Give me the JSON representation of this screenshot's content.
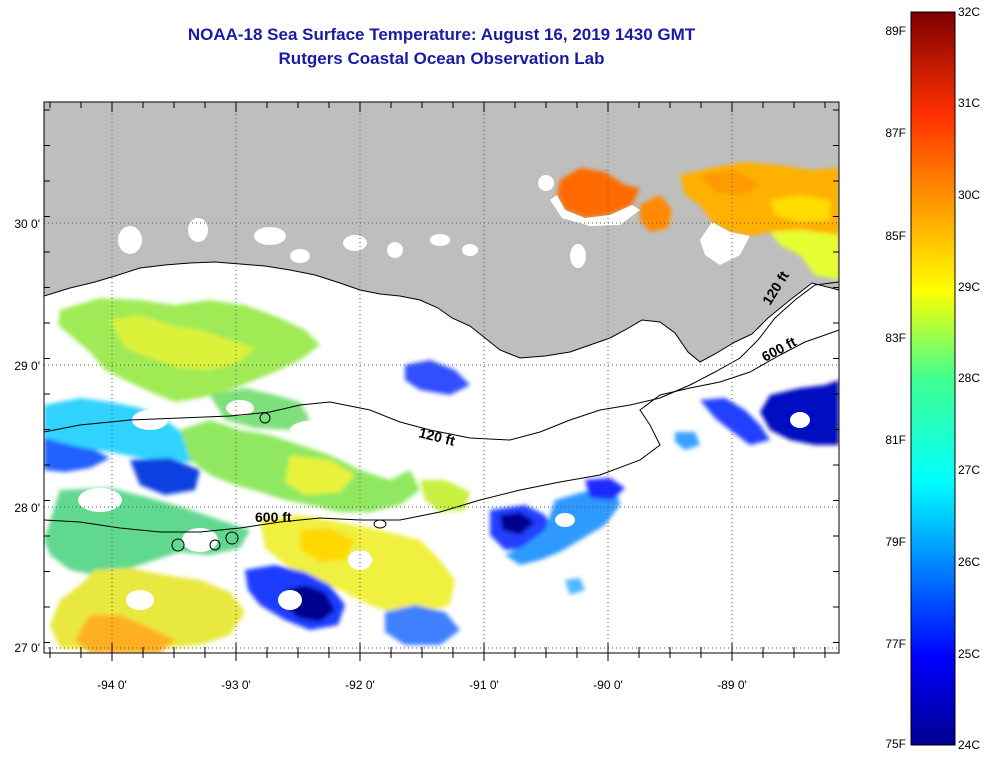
{
  "title": "NOAA-18 Sea Surface Temperature:  August 16, 2019 1430 GMT",
  "subtitle": "Rutgers Coastal Ocean Observation Lab",
  "map": {
    "longitude_labels": [
      "-94 0'",
      "-93 0'",
      "-92 0'",
      "-91 0'",
      "-90 0'",
      "-89 0'"
    ],
    "latitude_labels": [
      "30 0'",
      "29 0'",
      "28 0'",
      "27 0'"
    ],
    "contour_labels": [
      "120 ft",
      "600 ft",
      "120 ft",
      "600 ft"
    ],
    "colors": {
      "land": "#bebebe",
      "no_data": "#ffffff",
      "title": "#1a1aa6"
    }
  },
  "colorbar": {
    "fahrenheit_labels": [
      "89F",
      "87F",
      "85F",
      "83F",
      "81F",
      "79F",
      "77F",
      "75F"
    ],
    "celsius_labels": [
      "32C",
      "31C",
      "30C",
      "29C",
      "28C",
      "27C",
      "26C",
      "25C",
      "24C"
    ],
    "range_c": [
      24,
      32
    ],
    "range_f": [
      75,
      89
    ]
  }
}
